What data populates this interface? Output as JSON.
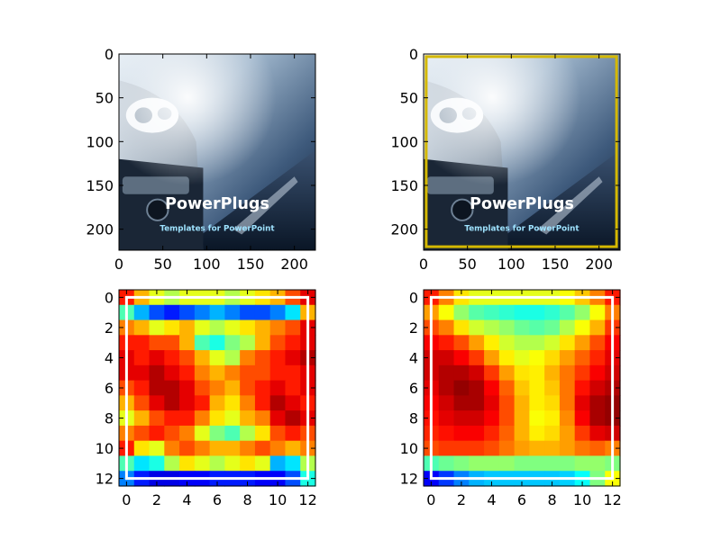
{
  "figure": {
    "background": "#ffffff"
  },
  "chart_data": [
    {
      "type": "image",
      "name": "original",
      "xlim": [
        0,
        224
      ],
      "ylim": [
        224,
        0
      ],
      "xticks": [
        0,
        50,
        100,
        150,
        200
      ],
      "yticks": [
        0,
        50,
        100,
        150,
        200
      ],
      "image_text": {
        "title": "PowerPlugs",
        "subtitle": "Templates for PowerPoint"
      },
      "image_colors": {
        "sky": "#c9d9e6",
        "mid": "#4a6686",
        "dark": "#0d1b2c",
        "accent": "#9fe3ff"
      }
    },
    {
      "type": "image",
      "name": "boxed",
      "xlim": [
        0,
        224
      ],
      "ylim": [
        224,
        0
      ],
      "xticks": [
        0,
        50,
        100,
        150,
        200
      ],
      "yticks": [
        0,
        50,
        100,
        150,
        200
      ],
      "image_text": {
        "title": "PowerPlugs",
        "subtitle": "Templates for PowerPoint"
      },
      "box": {
        "x0": 3,
        "y0": 3,
        "x1": 220,
        "y1": 220,
        "color": "#d4b800"
      }
    },
    {
      "type": "heatmap",
      "name": "heatmap-raw",
      "colormap": "jet",
      "xlim": [
        -0.5,
        12.5
      ],
      "ylim": [
        12.5,
        -0.5
      ],
      "xticks": [
        0,
        2,
        4,
        6,
        8,
        10,
        12
      ],
      "yticks": [
        0,
        2,
        4,
        6,
        8,
        10,
        12
      ],
      "box": {
        "x0": 0,
        "y0": 0,
        "x1": 12,
        "y1": 12,
        "color": "#ffffff"
      },
      "values": [
        [
          0.85,
          0.7,
          0.6,
          0.55,
          0.6,
          0.6,
          0.6,
          0.55,
          0.6,
          0.65,
          0.7,
          0.8,
          0.9
        ],
        [
          0.45,
          0.3,
          0.2,
          0.15,
          0.2,
          0.25,
          0.3,
          0.25,
          0.2,
          0.2,
          0.25,
          0.35,
          0.7
        ],
        [
          0.75,
          0.7,
          0.6,
          0.65,
          0.7,
          0.6,
          0.55,
          0.6,
          0.65,
          0.7,
          0.75,
          0.8,
          0.9
        ],
        [
          0.85,
          0.85,
          0.8,
          0.8,
          0.7,
          0.45,
          0.4,
          0.5,
          0.55,
          0.7,
          0.8,
          0.85,
          0.9
        ],
        [
          0.9,
          0.85,
          0.9,
          0.85,
          0.8,
          0.7,
          0.6,
          0.55,
          0.75,
          0.8,
          0.85,
          0.9,
          0.95
        ],
        [
          0.9,
          0.9,
          0.95,
          0.9,
          0.85,
          0.75,
          0.7,
          0.75,
          0.8,
          0.8,
          0.85,
          0.85,
          0.9
        ],
        [
          0.8,
          0.85,
          0.95,
          0.95,
          0.9,
          0.8,
          0.75,
          0.7,
          0.8,
          0.85,
          0.9,
          0.85,
          0.9
        ],
        [
          0.7,
          0.8,
          0.9,
          0.95,
          0.9,
          0.85,
          0.7,
          0.65,
          0.75,
          0.85,
          0.95,
          0.9,
          0.85
        ],
        [
          0.6,
          0.7,
          0.8,
          0.85,
          0.85,
          0.75,
          0.65,
          0.6,
          0.7,
          0.75,
          0.9,
          0.95,
          0.9
        ],
        [
          0.75,
          0.8,
          0.85,
          0.8,
          0.75,
          0.6,
          0.5,
          0.45,
          0.55,
          0.65,
          0.8,
          0.85,
          0.8
        ],
        [
          0.85,
          0.65,
          0.6,
          0.75,
          0.8,
          0.75,
          0.7,
          0.7,
          0.75,
          0.8,
          0.75,
          0.7,
          0.75
        ],
        [
          0.45,
          0.35,
          0.4,
          0.55,
          0.65,
          0.6,
          0.55,
          0.6,
          0.65,
          0.6,
          0.3,
          0.35,
          0.55
        ],
        [
          0.25,
          0.15,
          0.1,
          0.1,
          0.12,
          0.12,
          0.15,
          0.15,
          0.15,
          0.12,
          0.12,
          0.2,
          0.4
        ]
      ]
    },
    {
      "type": "heatmap",
      "name": "heatmap-smooth",
      "colormap": "jet",
      "xlim": [
        -0.5,
        12.5
      ],
      "ylim": [
        12.5,
        -0.5
      ],
      "xticks": [
        0,
        2,
        4,
        6,
        8,
        10,
        12
      ],
      "yticks": [
        0,
        2,
        4,
        6,
        8,
        10,
        12
      ],
      "box": {
        "x0": 0,
        "y0": 0,
        "x1": 12,
        "y1": 12,
        "color": "#ffffff"
      },
      "values": [
        [
          0.85,
          0.75,
          0.65,
          0.6,
          0.6,
          0.6,
          0.6,
          0.6,
          0.6,
          0.62,
          0.68,
          0.75,
          0.85
        ],
        [
          0.72,
          0.62,
          0.52,
          0.46,
          0.44,
          0.42,
          0.4,
          0.4,
          0.42,
          0.46,
          0.52,
          0.62,
          0.75
        ],
        [
          0.8,
          0.75,
          0.65,
          0.58,
          0.55,
          0.52,
          0.48,
          0.46,
          0.48,
          0.55,
          0.62,
          0.7,
          0.82
        ],
        [
          0.88,
          0.85,
          0.8,
          0.72,
          0.64,
          0.58,
          0.55,
          0.55,
          0.58,
          0.65,
          0.72,
          0.8,
          0.88
        ],
        [
          0.92,
          0.92,
          0.88,
          0.82,
          0.72,
          0.64,
          0.6,
          0.62,
          0.66,
          0.72,
          0.78,
          0.84,
          0.9
        ],
        [
          0.92,
          0.95,
          0.95,
          0.92,
          0.82,
          0.72,
          0.65,
          0.64,
          0.7,
          0.76,
          0.82,
          0.88,
          0.92
        ],
        [
          0.9,
          0.95,
          0.98,
          0.96,
          0.88,
          0.78,
          0.68,
          0.64,
          0.68,
          0.76,
          0.86,
          0.92,
          0.95
        ],
        [
          0.88,
          0.92,
          0.96,
          0.96,
          0.9,
          0.8,
          0.7,
          0.64,
          0.66,
          0.76,
          0.9,
          0.96,
          0.98
        ],
        [
          0.86,
          0.9,
          0.92,
          0.92,
          0.88,
          0.8,
          0.7,
          0.62,
          0.64,
          0.74,
          0.88,
          0.96,
          0.98
        ],
        [
          0.84,
          0.86,
          0.88,
          0.88,
          0.84,
          0.78,
          0.7,
          0.64,
          0.66,
          0.72,
          0.82,
          0.9,
          0.92
        ],
        [
          0.8,
          0.82,
          0.82,
          0.82,
          0.8,
          0.76,
          0.72,
          0.7,
          0.7,
          0.72,
          0.76,
          0.78,
          0.75
        ],
        [
          0.45,
          0.48,
          0.5,
          0.52,
          0.52,
          0.52,
          0.5,
          0.5,
          0.5,
          0.5,
          0.52,
          0.52,
          0.5
        ],
        [
          0.12,
          0.18,
          0.25,
          0.3,
          0.32,
          0.32,
          0.32,
          0.32,
          0.32,
          0.33,
          0.38,
          0.5,
          0.62
        ]
      ]
    }
  ]
}
